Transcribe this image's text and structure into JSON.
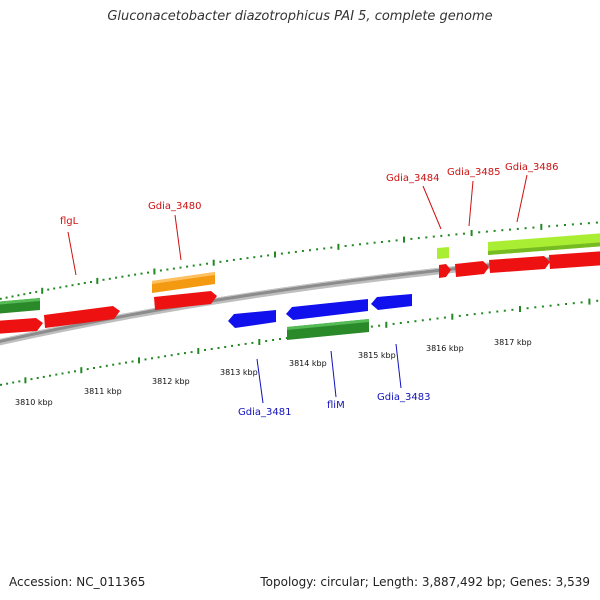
{
  "title": "Gluconacetobacter diazotrophicus PAI 5, complete genome",
  "footer": {
    "accession": "Accession: NC_011365",
    "summary": "Topology: circular; Length: 3,887,492 bp; Genes: 3,539"
  },
  "colors": {
    "red": "#ee1111",
    "green": "#2a8a2a",
    "lime": "#aaee33",
    "orange": "#f39a10",
    "blue": "#1111ee",
    "backbone": "#888888",
    "ticks": "#228822",
    "upper_label": "#cc1111",
    "lower_label": "#1111bb"
  },
  "ticks": [
    {
      "label": "3810 kbp"
    },
    {
      "label": "3811 kbp"
    },
    {
      "label": "3812 kbp"
    },
    {
      "label": "3813 kbp"
    },
    {
      "label": "3814 kbp"
    },
    {
      "label": "3815 kbp"
    },
    {
      "label": "3816 kbp"
    },
    {
      "label": "3817 kbp"
    }
  ],
  "gene_labels": [
    {
      "name": "flgL"
    },
    {
      "name": "Gdia_3480"
    },
    {
      "name": "Gdia_3484"
    },
    {
      "name": "Gdia_3485"
    },
    {
      "name": "Gdia_3486"
    },
    {
      "name": "Gdia_3481"
    },
    {
      "name": "fliM"
    },
    {
      "name": "Gdia_3483"
    }
  ]
}
